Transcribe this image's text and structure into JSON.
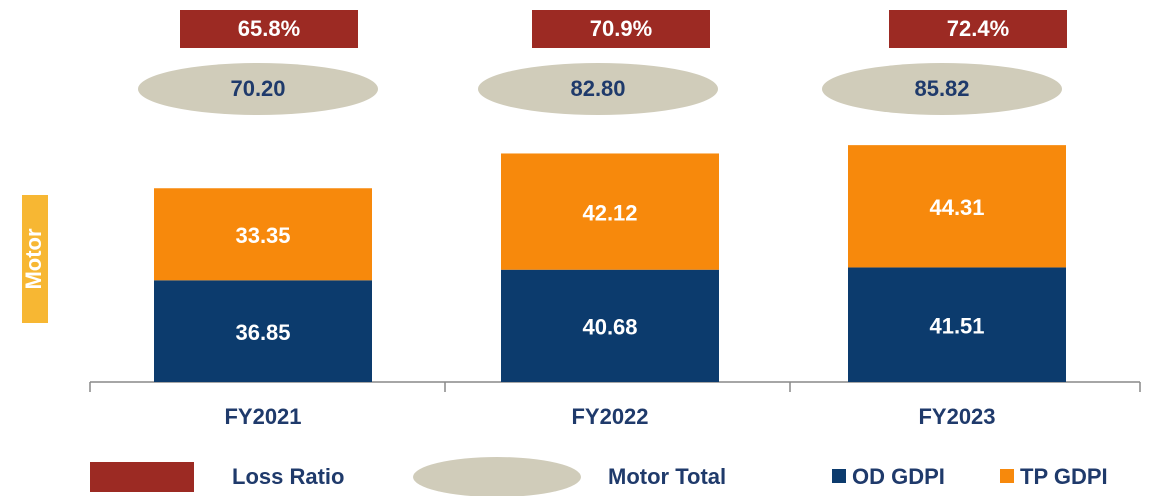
{
  "chart_data": {
    "type": "bar",
    "stacked": true,
    "side_label": "Motor",
    "categories": [
      "FY2021",
      "FY2022",
      "FY2023"
    ],
    "series": [
      {
        "name": "OD GDPI",
        "color": "#0c3b6d",
        "values": [
          36.85,
          40.68,
          41.51
        ]
      },
      {
        "name": "TP GDPI",
        "color": "#f7890c",
        "values": [
          33.35,
          42.12,
          44.31
        ]
      }
    ],
    "totals": {
      "name": "Motor Total",
      "color": "#d0ccba",
      "values": [
        70.2,
        82.8,
        85.82
      ],
      "value_labels": [
        "70.20",
        "82.80",
        "85.82"
      ]
    },
    "loss_ratio": {
      "name": "Loss Ratio",
      "color": "#9c2a23",
      "values": [
        65.8,
        70.9,
        72.4
      ],
      "value_labels": [
        "65.8%",
        "70.9%",
        "72.4%"
      ]
    }
  }
}
